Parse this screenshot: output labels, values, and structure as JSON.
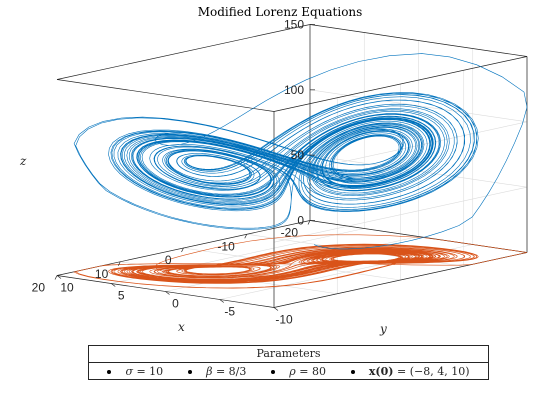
{
  "chart_data": {
    "type": "line",
    "title": "Modified Lorenz Equations",
    "xlabel": "x",
    "ylabel": "y",
    "zlabel": "z",
    "xlim": [
      -20,
      20
    ],
    "ylim": [
      -10,
      10
    ],
    "zlim": [
      0,
      150
    ],
    "x_ticks": [
      "20",
      "10",
      "0",
      "-10",
      "-20"
    ],
    "y_ticks": [
      "10",
      "5",
      "0",
      "-5",
      "-10"
    ],
    "z_ticks": [
      "0",
      "50",
      "100",
      "150"
    ],
    "grid": true,
    "parameters": {
      "sigma": 10,
      "beta": "8/3",
      "rho": 80,
      "x0": [
        -8,
        4,
        10
      ]
    },
    "series": [
      {
        "color": "#0072bd",
        "kind": "3d-trajectory"
      },
      {
        "color": "#d95319",
        "kind": "xy-projection at z=0"
      }
    ]
  },
  "legend": {
    "title": "Parameters",
    "items": [
      {
        "sym": "σ",
        "text": " = 10"
      },
      {
        "sym": "β",
        "text": " = 8/3"
      },
      {
        "sym": "ρ",
        "text": " = 80"
      },
      {
        "sym": "x(0)",
        "text": " = (−8, 4, 10)"
      }
    ]
  },
  "colors": {
    "trajectory": "#0072bd",
    "projection": "#d95319",
    "axes": "#262626",
    "grid": "#dcdcdc"
  }
}
